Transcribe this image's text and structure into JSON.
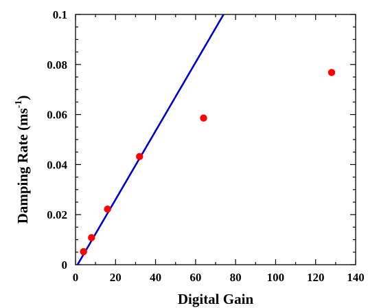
{
  "chart_data": {
    "type": "scatter",
    "xlabel": "Digital Gain",
    "ylabel": {
      "main": "Damping Rate (ms",
      "superscript": "-1",
      "close": ")"
    },
    "xlim": [
      0,
      140
    ],
    "ylim": [
      0,
      0.1
    ],
    "x_ticks": [
      0,
      20,
      40,
      60,
      80,
      100,
      120,
      140
    ],
    "y_ticks": [
      0,
      0.02,
      0.04,
      0.06,
      0.08,
      0.1
    ],
    "x_tick_labels": [
      "0",
      "20",
      "40",
      "60",
      "80",
      "100",
      "120",
      "140"
    ],
    "y_tick_labels": [
      "0",
      "0.02",
      "0.04",
      "0.06",
      "0.08",
      "0.1"
    ],
    "grid": false,
    "series": [
      {
        "type": "scatter",
        "color": "#ff0000",
        "points": [
          {
            "x": 4,
            "y": 0.0052
          },
          {
            "x": 8,
            "y": 0.0108
          },
          {
            "x": 16,
            "y": 0.0222
          },
          {
            "x": 32,
            "y": 0.0432
          },
          {
            "x": 64,
            "y": 0.0586
          },
          {
            "x": 128,
            "y": 0.0768
          }
        ]
      },
      {
        "type": "line",
        "color": "#0000cc",
        "points": [
          {
            "x": 1.0,
            "y": 0.0
          },
          {
            "x": 74.0,
            "y": 0.1
          }
        ]
      }
    ]
  }
}
